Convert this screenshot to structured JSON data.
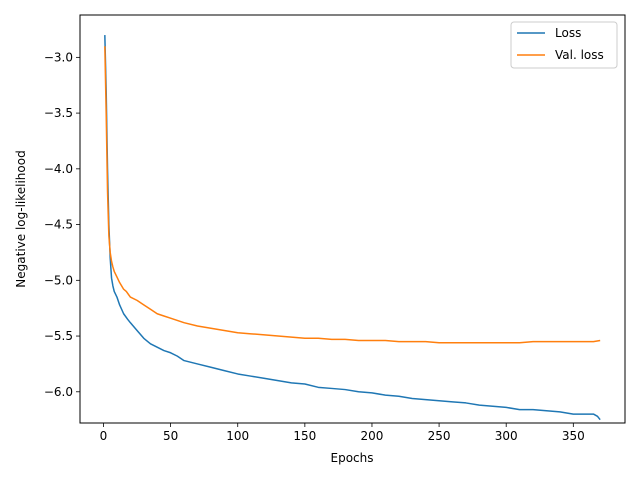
{
  "chart_data": {
    "type": "line",
    "title": "",
    "xlabel": "Epochs",
    "ylabel": "Negative log-likelihood",
    "xlim": [
      -17.5,
      388.5
    ],
    "ylim": [
      -6.28,
      -2.62
    ],
    "xticks": [
      0,
      50,
      100,
      150,
      200,
      250,
      300,
      350
    ],
    "yticks": [
      -3.0,
      -3.5,
      -4.0,
      -4.5,
      -5.0,
      -5.5,
      -6.0
    ],
    "xtick_labels": [
      "0",
      "50",
      "100",
      "150",
      "200",
      "250",
      "300",
      "350"
    ],
    "ytick_labels": [
      "−3.0",
      "−3.5",
      "−4.0",
      "−4.5",
      "−5.0",
      "−5.5",
      "−6.0"
    ],
    "grid": false,
    "legend_position": "top-right",
    "series": [
      {
        "name": "Loss",
        "color": "#1f77b4",
        "x": [
          1,
          2,
          3,
          4,
          5,
          6,
          7,
          8,
          10,
          12,
          15,
          18,
          20,
          25,
          30,
          35,
          40,
          45,
          50,
          55,
          60,
          70,
          80,
          90,
          100,
          110,
          120,
          130,
          140,
          150,
          160,
          170,
          180,
          190,
          200,
          210,
          220,
          230,
          240,
          250,
          260,
          270,
          280,
          290,
          300,
          310,
          320,
          330,
          340,
          350,
          360,
          365,
          368,
          370
        ],
        "y": [
          -2.8,
          -3.3,
          -4.0,
          -4.5,
          -4.8,
          -4.98,
          -5.05,
          -5.1,
          -5.15,
          -5.22,
          -5.3,
          -5.35,
          -5.38,
          -5.45,
          -5.52,
          -5.57,
          -5.6,
          -5.63,
          -5.65,
          -5.68,
          -5.72,
          -5.75,
          -5.78,
          -5.81,
          -5.84,
          -5.86,
          -5.88,
          -5.9,
          -5.92,
          -5.93,
          -5.96,
          -5.97,
          -5.98,
          -6.0,
          -6.01,
          -6.03,
          -6.04,
          -6.06,
          -6.07,
          -6.08,
          -6.09,
          -6.1,
          -6.12,
          -6.13,
          -6.14,
          -6.16,
          -6.16,
          -6.17,
          -6.18,
          -6.2,
          -6.2,
          -6.2,
          -6.22,
          -6.25
        ]
      },
      {
        "name": "Val. loss",
        "color": "#ff7f0e",
        "x": [
          1,
          2,
          3,
          4,
          5,
          6,
          7,
          8,
          10,
          12,
          15,
          17,
          20,
          25,
          30,
          35,
          40,
          45,
          50,
          55,
          60,
          70,
          80,
          90,
          100,
          110,
          120,
          130,
          140,
          150,
          160,
          170,
          180,
          190,
          200,
          210,
          220,
          230,
          240,
          250,
          260,
          270,
          280,
          290,
          300,
          310,
          320,
          330,
          340,
          350,
          360,
          365,
          370
        ],
        "y": [
          -2.9,
          -3.5,
          -4.2,
          -4.6,
          -4.75,
          -4.83,
          -4.88,
          -4.92,
          -4.97,
          -5.02,
          -5.08,
          -5.1,
          -5.15,
          -5.18,
          -5.22,
          -5.26,
          -5.3,
          -5.32,
          -5.34,
          -5.36,
          -5.38,
          -5.41,
          -5.43,
          -5.45,
          -5.47,
          -5.48,
          -5.49,
          -5.5,
          -5.51,
          -5.52,
          -5.52,
          -5.53,
          -5.53,
          -5.54,
          -5.54,
          -5.54,
          -5.55,
          -5.55,
          -5.55,
          -5.56,
          -5.56,
          -5.56,
          -5.56,
          -5.56,
          -5.56,
          -5.56,
          -5.55,
          -5.55,
          -5.55,
          -5.55,
          -5.55,
          -5.55,
          -5.54
        ]
      }
    ]
  }
}
